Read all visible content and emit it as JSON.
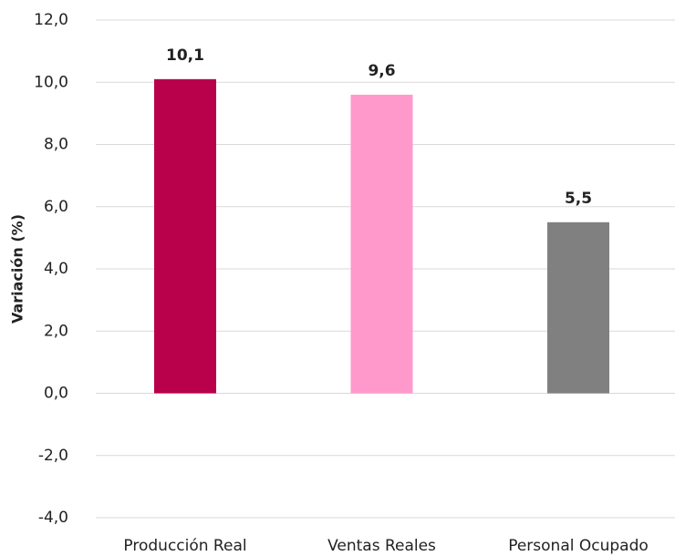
{
  "chart_data": {
    "type": "bar",
    "y_label": "Variación (%)",
    "categories": [
      "Producción Real",
      "Ventas Reales",
      "Personal Ocupado"
    ],
    "values": [
      10.1,
      9.6,
      5.5
    ],
    "value_labels": [
      "10,1",
      "9,6",
      "5,5"
    ],
    "colors": [
      "#b8004b",
      "#ff99cc",
      "#808080"
    ],
    "ylim": [
      -4,
      12
    ],
    "yticks": [
      {
        "value": -4,
        "label": "-4,0"
      },
      {
        "value": -2,
        "label": "-2,0"
      },
      {
        "value": 0,
        "label": "0,0"
      },
      {
        "value": 2,
        "label": "2,0"
      },
      {
        "value": 4,
        "label": "4,0"
      },
      {
        "value": 6,
        "label": "6,0"
      },
      {
        "value": 8,
        "label": "8,0"
      },
      {
        "value": 10,
        "label": "10,0"
      },
      {
        "value": 12,
        "label": "12,0"
      }
    ],
    "grid": true
  }
}
